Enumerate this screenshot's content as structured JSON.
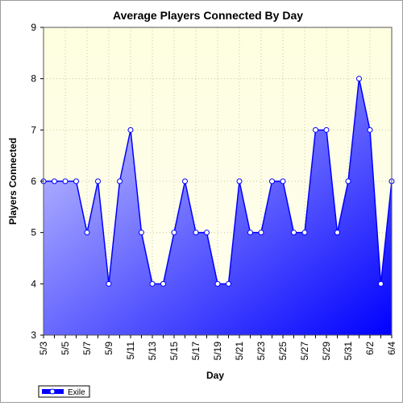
{
  "chart_data": {
    "type": "area",
    "title": "Average Players Connected By Day",
    "xlabel": "Day",
    "ylabel": "Players Connected",
    "ylim": [
      3,
      9
    ],
    "yticks": [
      3,
      4,
      5,
      6,
      7,
      8,
      9
    ],
    "grid": true,
    "legend_position": "bottom-left",
    "x_tick_labels": [
      "5/3",
      "5/5",
      "5/7",
      "5/9",
      "5/11",
      "5/13",
      "5/15",
      "5/17",
      "5/19",
      "5/21",
      "5/23",
      "5/25",
      "5/27",
      "5/29",
      "5/31",
      "6/2",
      "6/4"
    ],
    "categories": [
      "5/3",
      "5/4",
      "5/5",
      "5/6",
      "5/7",
      "5/8",
      "5/9",
      "5/10",
      "5/11",
      "5/12",
      "5/13",
      "5/14",
      "5/15",
      "5/16",
      "5/17",
      "5/18",
      "5/19",
      "5/20",
      "5/21",
      "5/22",
      "5/23",
      "5/24",
      "5/25",
      "5/26",
      "5/27",
      "5/28",
      "5/29",
      "5/30",
      "5/31",
      "6/1",
      "6/2",
      "6/3",
      "6/4"
    ],
    "series": [
      {
        "name": "Exile",
        "color": "#0000ff",
        "values": [
          6,
          6,
          6,
          6,
          5,
          6,
          4,
          6,
          7,
          5,
          4,
          4,
          5,
          6,
          5,
          5,
          4,
          4,
          6,
          5,
          5,
          6,
          6,
          5,
          5,
          7,
          7,
          5,
          6,
          8,
          7,
          4,
          6
        ]
      }
    ]
  },
  "colors": {
    "plot_background_top": "#fefee0",
    "plot_background_bottom": "#fffff0",
    "area_gradient_light": "#d2d2ff",
    "area_gradient_dark": "#0000ff",
    "line": "#0000ff"
  }
}
